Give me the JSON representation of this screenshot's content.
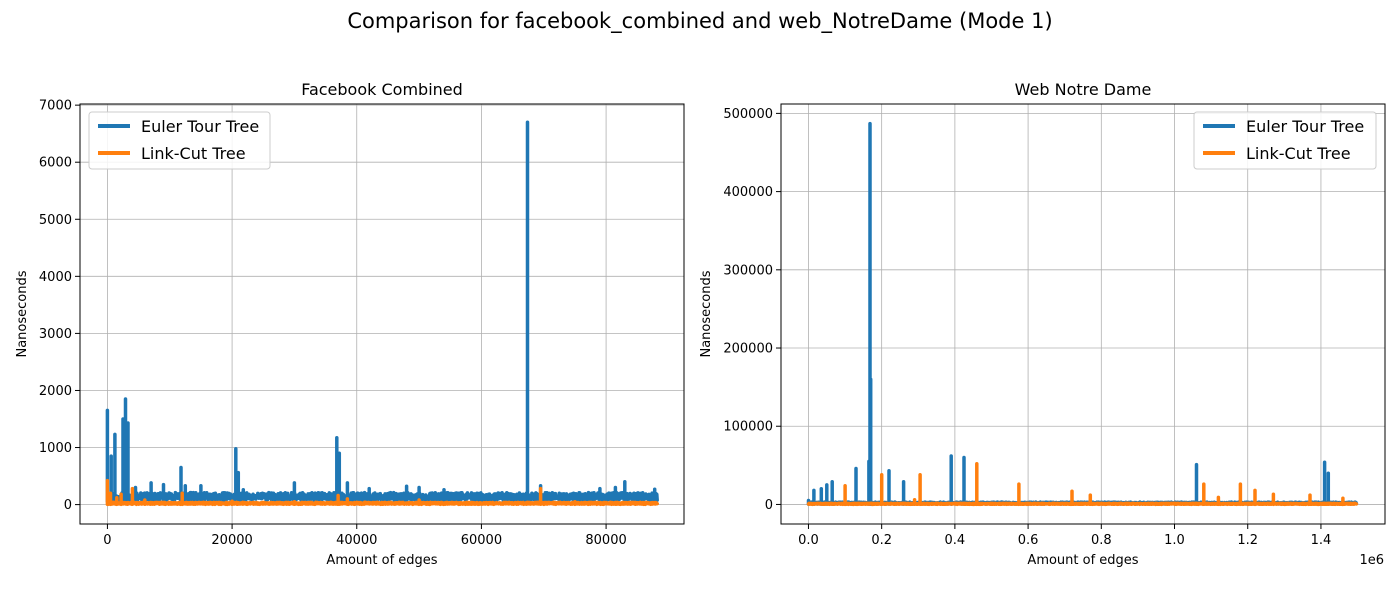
{
  "figure": {
    "title": "Comparison for facebook_combined and web_NotreDame (Mode 1)"
  },
  "colors": {
    "euler": "#1f77b4",
    "linkcut": "#ff7f0e",
    "grid": "#b0b0b0",
    "axes": "#000000"
  },
  "chart_data": [
    {
      "type": "line",
      "title": "Facebook Combined",
      "xlabel": "Amount of edges",
      "ylabel": "Nanoseconds",
      "xlim": [
        -4400,
        92500
      ],
      "ylim": [
        -340,
        7020
      ],
      "xticks": [
        0,
        20000,
        40000,
        60000,
        80000
      ],
      "xtick_labels": [
        "0",
        "20000",
        "40000",
        "60000",
        "80000"
      ],
      "yticks": [
        0,
        1000,
        2000,
        3000,
        4000,
        5000,
        6000,
        7000
      ],
      "ytick_labels": [
        "0",
        "1000",
        "2000",
        "3000",
        "4000",
        "5000",
        "6000",
        "7000"
      ],
      "grid": true,
      "legend_position": "top-left",
      "series": [
        {
          "name": "Euler Tour Tree",
          "x_max": 88200,
          "baseline": [
            60,
            210
          ],
          "spikes": [
            [
              0,
              1650
            ],
            [
              600,
              850
            ],
            [
              1200,
              1230
            ],
            [
              2500,
              1500
            ],
            [
              2900,
              1850
            ],
            [
              3300,
              1430
            ],
            [
              4500,
              300
            ],
            [
              7000,
              380
            ],
            [
              9000,
              350
            ],
            [
              11800,
              650
            ],
            [
              12500,
              330
            ],
            [
              15000,
              330
            ],
            [
              20600,
              980
            ],
            [
              21000,
              560
            ],
            [
              21800,
              260
            ],
            [
              30000,
              380
            ],
            [
              36800,
              1170
            ],
            [
              37200,
              900
            ],
            [
              38500,
              380
            ],
            [
              42000,
              280
            ],
            [
              48000,
              320
            ],
            [
              50000,
              300
            ],
            [
              54000,
              260
            ],
            [
              67400,
              6700
            ],
            [
              69500,
              330
            ],
            [
              72500,
              200
            ],
            [
              79000,
              280
            ],
            [
              81500,
              300
            ],
            [
              83000,
              400
            ],
            [
              85000,
              200
            ],
            [
              87800,
              270
            ]
          ]
        },
        {
          "name": "Link-Cut Tree",
          "x_max": 88200,
          "baseline": [
            5,
            40
          ],
          "spikes": [
            [
              0,
              420
            ],
            [
              500,
              200
            ],
            [
              1500,
              120
            ],
            [
              2200,
              180
            ],
            [
              4000,
              280
            ],
            [
              6000,
              80
            ],
            [
              12000,
              200
            ],
            [
              20000,
              60
            ],
            [
              30000,
              50
            ],
            [
              37000,
              160
            ],
            [
              38500,
              100
            ],
            [
              50000,
              80
            ],
            [
              69500,
              280
            ],
            [
              75000,
              50
            ]
          ]
        }
      ]
    },
    {
      "type": "line",
      "title": "Web Notre Dame",
      "xlabel": "Amount of edges",
      "ylabel": "Nanoseconds",
      "x_offset_label": "1e6",
      "xlim": [
        -75000,
        1575000
      ],
      "ylim": [
        -25000,
        512000
      ],
      "xticks": [
        0,
        200000,
        400000,
        600000,
        800000,
        1000000,
        1200000,
        1400000
      ],
      "xtick_labels": [
        "0.0",
        "0.2",
        "0.4",
        "0.6",
        "0.8",
        "1.0",
        "1.2",
        "1.4"
      ],
      "yticks": [
        0,
        100000,
        200000,
        300000,
        400000,
        500000
      ],
      "ytick_labels": [
        "0",
        "100000",
        "200000",
        "300000",
        "400000",
        "500000"
      ],
      "grid": true,
      "legend_position": "top-right",
      "series": [
        {
          "name": "Euler Tour Tree",
          "x_max": 1497000,
          "baseline": [
            500,
            3000
          ],
          "spikes": [
            [
              0,
              5000
            ],
            [
              15000,
              18000
            ],
            [
              35000,
              20000
            ],
            [
              50000,
              25000
            ],
            [
              65000,
              29000
            ],
            [
              130000,
              46000
            ],
            [
              165000,
              55000
            ],
            [
              168000,
              487000
            ],
            [
              170000,
              160000
            ],
            [
              220000,
              43000
            ],
            [
              260000,
              29000
            ],
            [
              390000,
              62000
            ],
            [
              425000,
              60000
            ],
            [
              1060000,
              51000
            ],
            [
              1410000,
              54000
            ],
            [
              1420000,
              40000
            ]
          ]
        },
        {
          "name": "Link-Cut Tree",
          "x_max": 1497000,
          "baseline": [
            200,
            1500
          ],
          "spikes": [
            [
              100000,
              24000
            ],
            [
              200000,
              38000
            ],
            [
              290000,
              6000
            ],
            [
              305000,
              38000
            ],
            [
              460000,
              52000
            ],
            [
              575000,
              26000
            ],
            [
              720000,
              17000
            ],
            [
              770000,
              12000
            ],
            [
              1080000,
              26000
            ],
            [
              1120000,
              9000
            ],
            [
              1180000,
              26000
            ],
            [
              1220000,
              18000
            ],
            [
              1270000,
              13000
            ],
            [
              1370000,
              12000
            ],
            [
              1460000,
              8000
            ]
          ]
        }
      ]
    }
  ]
}
